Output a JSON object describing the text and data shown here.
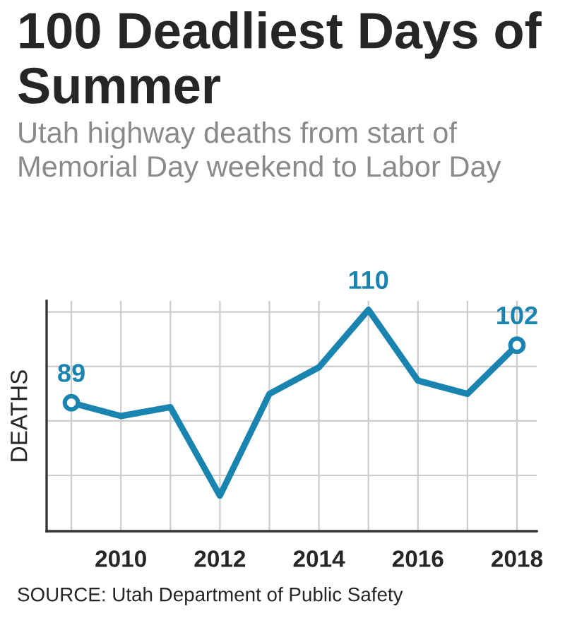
{
  "chart_data": {
    "type": "line",
    "title": "100 Deadliest Days of Summer",
    "subtitle": "Utah highway deaths from start of Memorial Day weekend to Labor Day",
    "ylabel": "DEATHS",
    "x": [
      2009,
      2010,
      2011,
      2012,
      2013,
      2014,
      2015,
      2016,
      2017,
      2018
    ],
    "series": [
      {
        "color": "#1a84b0",
        "values": [
          89,
          86,
          88,
          68,
          91,
          97,
          110,
          94,
          91,
          102
        ],
        "value_labels": [
          "89",
          null,
          null,
          null,
          null,
          null,
          "110",
          null,
          null,
          "102"
        ]
      },
      {
        "type": "scatter",
        "marker": "circle",
        "color": "#1a84b0",
        "x": [
          2009,
          2018
        ],
        "values": [
          89,
          102
        ]
      }
    ],
    "xlim": [
      2008.5,
      2018.4
    ],
    "xticks": [
      {
        "value": 2009,
        "label": null
      },
      2010,
      {
        "value": 2011,
        "label": null
      },
      2012,
      {
        "value": 2013,
        "label": null
      },
      2014,
      {
        "value": 2015,
        "label": null
      },
      2016,
      {
        "value": 2017,
        "label": null
      },
      2018
    ],
    "ylim": [
      60,
      112
    ],
    "yticks": [
      {
        "value": 72.6,
        "label": null
      },
      {
        "value": 84.9,
        "label": null
      },
      {
        "value": 97.2,
        "label": null
      },
      {
        "value": 109.5,
        "label": null
      }
    ],
    "grid": true,
    "line_style": "solid",
    "tick_labels": "x",
    "annotations": [
      "SOURCE: Utah Department of Public Safety"
    ]
  }
}
